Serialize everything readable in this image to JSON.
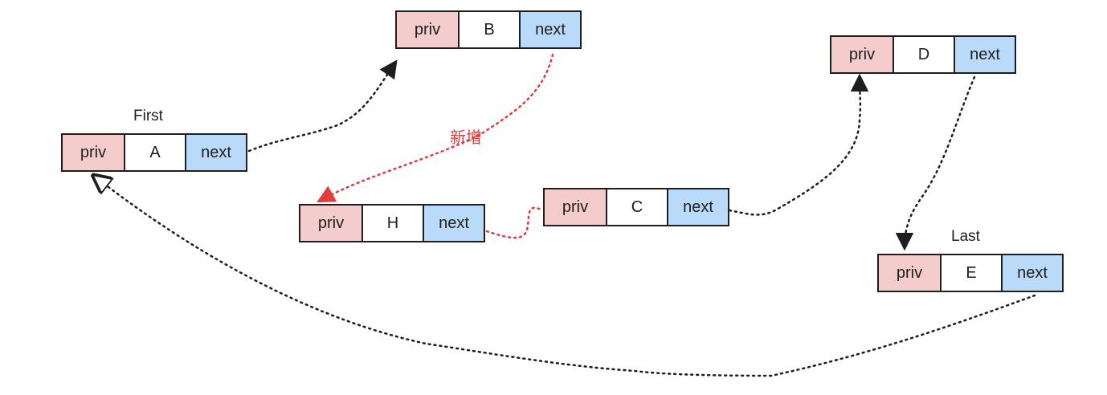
{
  "nodes": {
    "a": {
      "priv": "priv",
      "value": "A",
      "next": "next"
    },
    "b": {
      "priv": "priv",
      "value": "B",
      "next": "next"
    },
    "h": {
      "priv": "priv",
      "value": "H",
      "next": "next"
    },
    "c": {
      "priv": "priv",
      "value": "C",
      "next": "next"
    },
    "d": {
      "priv": "priv",
      "value": "D",
      "next": "next"
    },
    "e": {
      "priv": "priv",
      "value": "E",
      "next": "next"
    }
  },
  "labels": {
    "first": "First",
    "last": "Last",
    "added": "新增"
  },
  "colors": {
    "priv_fill": "#f4cccc",
    "next_fill": "#b9daf9",
    "edge_black": "#1e1e1e",
    "edge_red": "#e03e3e"
  }
}
